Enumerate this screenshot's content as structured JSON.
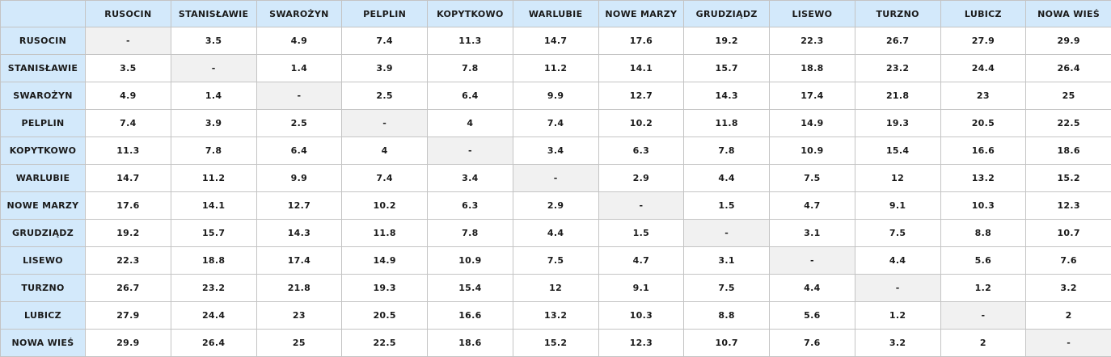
{
  "table": {
    "corner": "",
    "columns": [
      "RUSOCIN",
      "STANISŁAWIE",
      "SWAROŻYN",
      "PELPLIN",
      "KOPYTKOWO",
      "WARLUBIE",
      "NOWE MARZY",
      "GRUDZIĄDZ",
      "LISEWO",
      "TURZNO",
      "LUBICZ",
      "NOWA WIEŚ"
    ],
    "rows": [
      {
        "label": "RUSOCIN",
        "cells": [
          "-",
          "3.5",
          "4.9",
          "7.4",
          "11.3",
          "14.7",
          "17.6",
          "19.2",
          "22.3",
          "26.7",
          "27.9",
          "29.9"
        ]
      },
      {
        "label": "STANISŁAWIE",
        "cells": [
          "3.5",
          "-",
          "1.4",
          "3.9",
          "7.8",
          "11.2",
          "14.1",
          "15.7",
          "18.8",
          "23.2",
          "24.4",
          "26.4"
        ]
      },
      {
        "label": "SWAROŻYN",
        "cells": [
          "4.9",
          "1.4",
          "-",
          "2.5",
          "6.4",
          "9.9",
          "12.7",
          "14.3",
          "17.4",
          "21.8",
          "23",
          "25"
        ]
      },
      {
        "label": "PELPLIN",
        "cells": [
          "7.4",
          "3.9",
          "2.5",
          "-",
          "4",
          "7.4",
          "10.2",
          "11.8",
          "14.9",
          "19.3",
          "20.5",
          "22.5"
        ]
      },
      {
        "label": "KOPYTKOWO",
        "cells": [
          "11.3",
          "7.8",
          "6.4",
          "4",
          "-",
          "3.4",
          "6.3",
          "7.8",
          "10.9",
          "15.4",
          "16.6",
          "18.6"
        ]
      },
      {
        "label": "WARLUBIE",
        "cells": [
          "14.7",
          "11.2",
          "9.9",
          "7.4",
          "3.4",
          "-",
          "2.9",
          "4.4",
          "7.5",
          "12",
          "13.2",
          "15.2"
        ]
      },
      {
        "label": "NOWE MARZY",
        "cells": [
          "17.6",
          "14.1",
          "12.7",
          "10.2",
          "6.3",
          "2.9",
          "-",
          "1.5",
          "4.7",
          "9.1",
          "10.3",
          "12.3"
        ]
      },
      {
        "label": "GRUDZIĄDZ",
        "cells": [
          "19.2",
          "15.7",
          "14.3",
          "11.8",
          "7.8",
          "4.4",
          "1.5",
          "-",
          "3.1",
          "7.5",
          "8.8",
          "10.7"
        ]
      },
      {
        "label": "LISEWO",
        "cells": [
          "22.3",
          "18.8",
          "17.4",
          "14.9",
          "10.9",
          "7.5",
          "4.7",
          "3.1",
          "-",
          "4.4",
          "5.6",
          "7.6"
        ]
      },
      {
        "label": "TURZNO",
        "cells": [
          "26.7",
          "23.2",
          "21.8",
          "19.3",
          "15.4",
          "12",
          "9.1",
          "7.5",
          "4.4",
          "-",
          "1.2",
          "3.2"
        ]
      },
      {
        "label": "LUBICZ",
        "cells": [
          "27.9",
          "24.4",
          "23",
          "20.5",
          "16.6",
          "13.2",
          "10.3",
          "8.8",
          "5.6",
          "1.2",
          "-",
          "2"
        ]
      },
      {
        "label": "NOWA WIEŚ",
        "cells": [
          "29.9",
          "26.4",
          "25",
          "22.5",
          "18.6",
          "15.2",
          "12.3",
          "10.7",
          "7.6",
          "3.2",
          "2",
          "-"
        ]
      }
    ]
  },
  "colors": {
    "header_bg": "#d3e9fb",
    "diagonal_bg": "#f1f1f1",
    "border": "#c4c4c4"
  }
}
